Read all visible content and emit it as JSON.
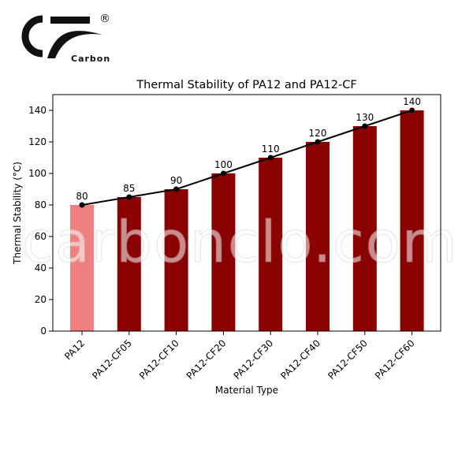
{
  "logo": {
    "letters": "CF",
    "registered": "®",
    "word": "Carbon"
  },
  "watermark": {
    "text": "carbonclo.com"
  },
  "chart_data": {
    "type": "bar",
    "title": "Thermal Stability of PA12 and PA12-CF",
    "xlabel": "Material Type",
    "ylabel": "Thermal Stability (°C)",
    "categories": [
      "PA12",
      "PA12-CF05",
      "PA12-CF10",
      "PA12-CF20",
      "PA12-CF30",
      "PA12-CF40",
      "PA12-CF50",
      "PA12-CF60"
    ],
    "values": [
      80,
      85,
      90,
      100,
      110,
      120,
      130,
      140
    ],
    "data_labels": [
      "80",
      "85",
      "90",
      "100",
      "110",
      "120",
      "130",
      "140"
    ],
    "bar_colors": [
      "#f08080",
      "#8b0000",
      "#8b0000",
      "#8b0000",
      "#8b0000",
      "#8b0000",
      "#8b0000",
      "#8b0000"
    ],
    "line_overlay": {
      "values": [
        80,
        85,
        90,
        100,
        110,
        120,
        130,
        140
      ],
      "color": "#000000",
      "marker": "circle"
    },
    "ylim": [
      0,
      150
    ],
    "yticks": [
      0,
      20,
      40,
      60,
      80,
      100,
      120,
      140
    ],
    "ytick_labels": [
      "0",
      "20",
      "40",
      "60",
      "80",
      "100",
      "120",
      "140"
    ],
    "grid": false,
    "legend": "none"
  }
}
